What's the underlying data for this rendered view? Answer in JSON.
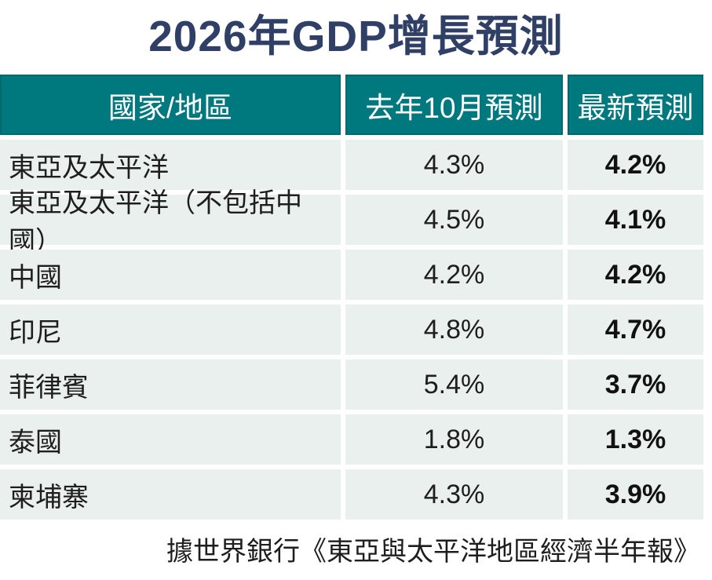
{
  "chart_data": {
    "type": "table",
    "title": "2026年GDP增長預測",
    "columns": [
      "國家/地區",
      "去年10月預測",
      "最新預測"
    ],
    "rows": [
      [
        "東亞及太平洋",
        "4.3%",
        "4.2%"
      ],
      [
        "東亞及太平洋（不包括中國）",
        "4.5%",
        "4.1%"
      ],
      [
        "中國",
        "4.2%",
        "4.2%"
      ],
      [
        "印尼",
        "4.8%",
        "4.7%"
      ],
      [
        "菲律賓",
        "5.4%",
        "3.7%"
      ],
      [
        "泰國",
        "1.8%",
        "1.3%"
      ],
      [
        "柬埔寨",
        "4.3%",
        "3.9%"
      ]
    ],
    "source": "據世界銀行《東亞與太平洋地區經濟半年報》",
    "grid": false,
    "legend_position": "none"
  },
  "colors": {
    "header_bg": "#00797e",
    "header_text": "#ffffff",
    "row_bg": "#e9f0ee",
    "body_text": "#1e1e1e",
    "title_text": "#303f66",
    "page_bg": "#ffffff"
  }
}
